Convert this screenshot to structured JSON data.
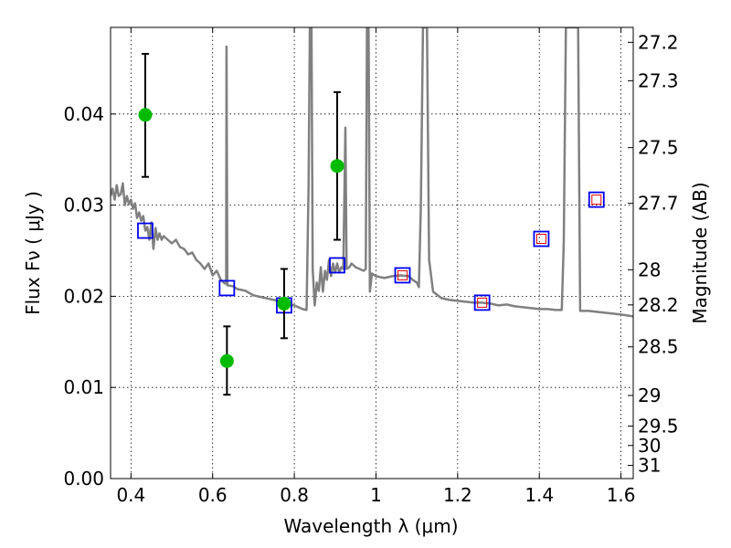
{
  "chart_data": {
    "type": "scatter",
    "title": "",
    "xlabel": "Wavelength  λ (μm)",
    "ylabel": "Flux  Fν  ( μJy )",
    "ylabel_right": "Magnitude (AB)",
    "xlim": [
      0.35,
      1.63
    ],
    "ylim": [
      0.0,
      0.0495
    ],
    "grid": true,
    "x_ticks": [
      0.4,
      0.6,
      0.8,
      1.0,
      1.2,
      1.4,
      1.6
    ],
    "x_tick_labels": [
      "0.4",
      "0.6",
      "0.8",
      "1",
      "1.2",
      "1.4",
      "1.6"
    ],
    "y_ticks": [
      0.0,
      0.01,
      0.02,
      0.03,
      0.04
    ],
    "y_tick_labels": [
      "0.00",
      "0.01",
      "0.02",
      "0.03",
      "0.04"
    ],
    "mag_ticks": [
      27.2,
      27.3,
      27.5,
      27.7,
      28,
      28.2,
      28.5,
      29,
      29.5,
      30,
      31
    ],
    "mag_tick_labels": [
      "27.2",
      "27.3",
      "27.5",
      "27.7",
      "28",
      "28.2",
      "28.5",
      "29",
      "29.5",
      "30",
      "31"
    ],
    "colors": {
      "observed": "#00bb00",
      "model_box": "#0000ee",
      "model_box_inner": "#ee0000",
      "sed": "#808080",
      "errorbar": "#000000"
    },
    "series": [
      {
        "kind": "observed",
        "points": [
          {
            "x": 0.435,
            "y": 0.0399,
            "yerr_low": 0.0331,
            "yerr_high": 0.0466
          },
          {
            "x": 0.635,
            "y": 0.0129,
            "yerr_low": 0.0092,
            "yerr_high": 0.0167
          },
          {
            "x": 0.775,
            "y": 0.0192,
            "yerr_low": 0.0154,
            "yerr_high": 0.023
          },
          {
            "x": 0.905,
            "y": 0.0343,
            "yerr_low": 0.0262,
            "yerr_high": 0.0424
          }
        ]
      },
      {
        "kind": "model",
        "points": [
          {
            "x": 0.435,
            "y": 0.0272,
            "inner": false
          },
          {
            "x": 0.635,
            "y": 0.0209,
            "inner": false
          },
          {
            "x": 0.775,
            "y": 0.019,
            "inner": false
          },
          {
            "x": 0.905,
            "y": 0.0234,
            "inner": false
          },
          {
            "x": 1.065,
            "y": 0.0223,
            "inner": true
          },
          {
            "x": 1.26,
            "y": 0.0193,
            "inner": true
          },
          {
            "x": 1.405,
            "y": 0.0263,
            "inner": true
          },
          {
            "x": 1.54,
            "y": 0.0306,
            "inner": true
          }
        ]
      },
      {
        "kind": "sed",
        "points": [
          [
            0.35,
            0.031
          ],
          [
            0.355,
            0.0318
          ],
          [
            0.36,
            0.0306
          ],
          [
            0.365,
            0.0322
          ],
          [
            0.37,
            0.031
          ],
          [
            0.375,
            0.0312
          ],
          [
            0.38,
            0.0324
          ],
          [
            0.385,
            0.03
          ],
          [
            0.39,
            0.031
          ],
          [
            0.395,
            0.0301
          ],
          [
            0.4,
            0.0306
          ],
          [
            0.405,
            0.0296
          ],
          [
            0.41,
            0.0302
          ],
          [
            0.415,
            0.0286
          ],
          [
            0.42,
            0.0292
          ],
          [
            0.425,
            0.0283
          ],
          [
            0.43,
            0.0288
          ],
          [
            0.435,
            0.0272
          ],
          [
            0.44,
            0.0276
          ],
          [
            0.445,
            0.0262
          ],
          [
            0.45,
            0.0281
          ],
          [
            0.455,
            0.0252
          ],
          [
            0.46,
            0.0275
          ],
          [
            0.465,
            0.0262
          ],
          [
            0.47,
            0.0269
          ],
          [
            0.475,
            0.0262
          ],
          [
            0.48,
            0.0266
          ],
          [
            0.49,
            0.0262
          ],
          [
            0.5,
            0.0258
          ],
          [
            0.51,
            0.0262
          ],
          [
            0.52,
            0.0254
          ],
          [
            0.53,
            0.0252
          ],
          [
            0.54,
            0.0246
          ],
          [
            0.55,
            0.0248
          ],
          [
            0.56,
            0.024
          ],
          [
            0.57,
            0.0236
          ],
          [
            0.58,
            0.023
          ],
          [
            0.59,
            0.0236
          ],
          [
            0.6,
            0.0223
          ],
          [
            0.61,
            0.0228
          ],
          [
            0.62,
            0.0218
          ],
          [
            0.63,
            0.0214
          ],
          [
            0.633,
            0.0214
          ],
          [
            0.634,
            0.0474
          ],
          [
            0.636,
            0.0212
          ],
          [
            0.65,
            0.0211
          ],
          [
            0.66,
            0.0208
          ],
          [
            0.68,
            0.0206
          ],
          [
            0.7,
            0.0201
          ],
          [
            0.72,
            0.0199
          ],
          [
            0.74,
            0.0197
          ],
          [
            0.76,
            0.0195
          ],
          [
            0.78,
            0.0192
          ],
          [
            0.8,
            0.019
          ],
          [
            0.82,
            0.0186
          ],
          [
            0.83,
            0.0185
          ],
          [
            0.835,
            0.032
          ],
          [
            0.838,
            0.0495
          ],
          [
            0.842,
            0.0495
          ],
          [
            0.845,
            0.023
          ],
          [
            0.85,
            0.019
          ],
          [
            0.855,
            0.0215
          ],
          [
            0.86,
            0.0206
          ],
          [
            0.865,
            0.0232
          ],
          [
            0.87,
            0.0205
          ],
          [
            0.875,
            0.0228
          ],
          [
            0.88,
            0.0218
          ],
          [
            0.885,
            0.024
          ],
          [
            0.89,
            0.0222
          ],
          [
            0.895,
            0.0236
          ],
          [
            0.9,
            0.0226
          ],
          [
            0.905,
            0.0236
          ],
          [
            0.91,
            0.0226
          ],
          [
            0.915,
            0.0232
          ],
          [
            0.92,
            0.023
          ],
          [
            0.925,
            0.0385
          ],
          [
            0.928,
            0.023
          ],
          [
            0.935,
            0.0232
          ],
          [
            0.94,
            0.0236
          ],
          [
            0.95,
            0.0232
          ],
          [
            0.96,
            0.023
          ],
          [
            0.97,
            0.0228
          ],
          [
            0.975,
            0.023
          ],
          [
            0.978,
            0.0495
          ],
          [
            0.982,
            0.0495
          ],
          [
            0.985,
            0.0205
          ],
          [
            0.99,
            0.0225
          ],
          [
            1.0,
            0.0222
          ],
          [
            1.02,
            0.022
          ],
          [
            1.04,
            0.0222
          ],
          [
            1.06,
            0.0223
          ],
          [
            1.08,
            0.0222
          ],
          [
            1.09,
            0.0218
          ],
          [
            1.1,
            0.0215
          ],
          [
            1.105,
            0.021
          ],
          [
            1.11,
            0.03
          ],
          [
            1.115,
            0.0495
          ],
          [
            1.125,
            0.0495
          ],
          [
            1.13,
            0.024
          ],
          [
            1.14,
            0.0205
          ],
          [
            1.16,
            0.0198
          ],
          [
            1.18,
            0.0196
          ],
          [
            1.2,
            0.0195
          ],
          [
            1.22,
            0.0194
          ],
          [
            1.24,
            0.0193
          ],
          [
            1.26,
            0.0193
          ],
          [
            1.28,
            0.0192
          ],
          [
            1.3,
            0.019
          ],
          [
            1.32,
            0.0191
          ],
          [
            1.34,
            0.0189
          ],
          [
            1.36,
            0.0188
          ],
          [
            1.38,
            0.0187
          ],
          [
            1.4,
            0.0186
          ],
          [
            1.42,
            0.0186
          ],
          [
            1.44,
            0.0185
          ],
          [
            1.455,
            0.0185
          ],
          [
            1.46,
            0.026
          ],
          [
            1.465,
            0.0495
          ],
          [
            1.495,
            0.0495
          ],
          [
            1.5,
            0.0184
          ],
          [
            1.52,
            0.0184
          ],
          [
            1.54,
            0.0183
          ],
          [
            1.56,
            0.0182
          ],
          [
            1.58,
            0.0181
          ],
          [
            1.6,
            0.018
          ],
          [
            1.63,
            0.0178
          ]
        ]
      }
    ]
  }
}
